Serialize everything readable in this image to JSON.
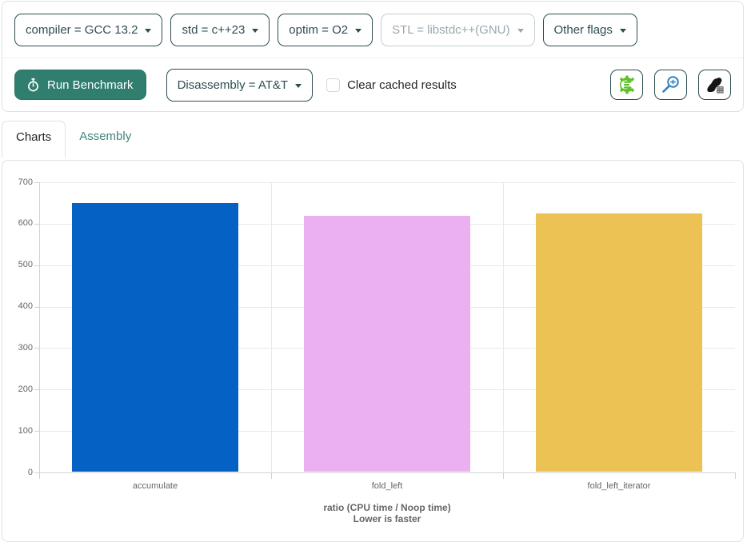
{
  "toolbar": {
    "filters": [
      {
        "label": "compiler = GCC 13.2",
        "disabled": false
      },
      {
        "label": "std = c++23",
        "disabled": false
      },
      {
        "label": "optim = O2",
        "disabled": false
      },
      {
        "label": "STL = libstdc++(GNU)",
        "disabled": true
      },
      {
        "label": "Other flags",
        "disabled": false
      }
    ],
    "run_button_label": "Run Benchmark",
    "disassembly_label": "Disassembly = AT&T",
    "clear_cache_label": "Clear cached results",
    "icon_buttons": [
      {
        "name": "compiler-explorer",
        "color": "#5fbf27"
      },
      {
        "name": "cpp-insights",
        "color": "#2f82c2"
      },
      {
        "name": "github-project",
        "color": "#151515"
      }
    ]
  },
  "tabs": {
    "charts": "Charts",
    "assembly": "Assembly"
  },
  "colors": {
    "theme_dark": "#2e4d52",
    "run_button_bg": "#2f7e6e",
    "link_teal": "#41837d",
    "card_border": "#dee2e6",
    "disabled_text": "#9aa8ae"
  },
  "chart_data": {
    "type": "bar",
    "categories": [
      "accumulate",
      "fold_left",
      "fold_left_iterator"
    ],
    "values": [
      650,
      619,
      624
    ],
    "bar_colors": [
      "#0562c4",
      "#eab0f0",
      "#ecc255"
    ],
    "title": "ratio (CPU time / Noop time)",
    "subtitle": "Lower is faster",
    "xlabel": "",
    "ylabel": "",
    "ylim": [
      0,
      700
    ],
    "ytick_step": 100,
    "grid": true,
    "legend": "none",
    "tick_color": "#666666",
    "grid_color": "#e9e9e9",
    "axis_color": "#d2d2d2"
  }
}
